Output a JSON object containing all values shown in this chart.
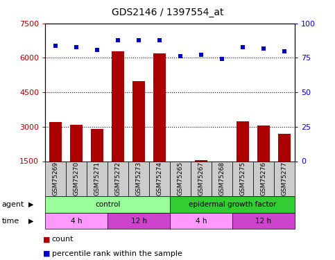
{
  "title": "GDS2146 / 1397554_at",
  "samples": [
    "GSM75269",
    "GSM75270",
    "GSM75271",
    "GSM75272",
    "GSM75273",
    "GSM75274",
    "GSM75265",
    "GSM75267",
    "GSM75268",
    "GSM75275",
    "GSM75276",
    "GSM75277"
  ],
  "counts": [
    3200,
    3100,
    2900,
    6300,
    5000,
    6200,
    1450,
    1550,
    1380,
    3250,
    3050,
    2700
  ],
  "percentile_ranks": [
    84,
    83,
    81,
    88,
    88,
    88,
    76,
    77,
    74,
    83,
    82,
    80
  ],
  "ylim_left": [
    1500,
    7500
  ],
  "ylim_right": [
    0,
    100
  ],
  "yticks_left": [
    1500,
    3000,
    4500,
    6000,
    7500
  ],
  "yticks_right": [
    0,
    25,
    50,
    75,
    100
  ],
  "bar_color": "#AA0000",
  "dot_color": "#0000CC",
  "bar_bottom": 1500,
  "agent_groups": [
    {
      "label": "control",
      "start": 0,
      "end": 6,
      "color": "#99FF99"
    },
    {
      "label": "epidermal growth factor",
      "start": 6,
      "end": 12,
      "color": "#33CC33"
    }
  ],
  "time_groups": [
    {
      "label": "4 h",
      "start": 0,
      "end": 3,
      "color": "#FF99FF"
    },
    {
      "label": "12 h",
      "start": 3,
      "end": 6,
      "color": "#CC44CC"
    },
    {
      "label": "4 h",
      "start": 6,
      "end": 9,
      "color": "#FF99FF"
    },
    {
      "label": "12 h",
      "start": 9,
      "end": 12,
      "color": "#CC44CC"
    }
  ],
  "legend_items": [
    {
      "label": "count",
      "color": "#AA0000"
    },
    {
      "label": "percentile rank within the sample",
      "color": "#0000CC"
    }
  ],
  "left_color": "#AA0000",
  "right_color": "#0000CC",
  "sample_box_color": "#CCCCCC",
  "grid_color": "black",
  "grid_lines": [
    3000,
    4500,
    6000
  ]
}
